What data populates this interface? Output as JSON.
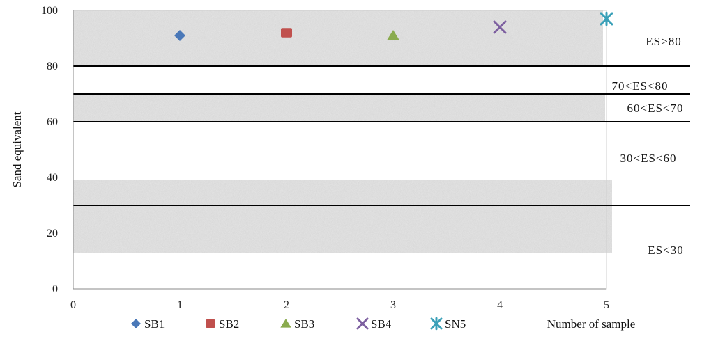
{
  "chart_data": {
    "type": "scatter",
    "title": "",
    "xlabel": "Number of sample",
    "ylabel": "Sand equivalent",
    "xlim": [
      0,
      5
    ],
    "ylim": [
      0,
      100
    ],
    "x_ticks": [
      "0",
      "1",
      "2",
      "3",
      "4",
      "5"
    ],
    "y_ticks": [
      "0",
      "20",
      "40",
      "60",
      "80",
      "100"
    ],
    "series": [
      {
        "name": "SB1",
        "marker": "diamond",
        "color": "#4a78b8",
        "x": [
          1
        ],
        "y": [
          91
        ]
      },
      {
        "name": "SB2",
        "marker": "square",
        "color": "#c0504d",
        "x": [
          2
        ],
        "y": [
          92
        ]
      },
      {
        "name": "SB3",
        "marker": "triangle",
        "color": "#8aab4e",
        "x": [
          3
        ],
        "y": [
          91
        ]
      },
      {
        "name": "SB4",
        "marker": "x",
        "color": "#7d5fa0",
        "x": [
          4
        ],
        "y": [
          94
        ]
      },
      {
        "name": "SN5",
        "marker": "star",
        "color": "#3aa0b8",
        "x": [
          5
        ],
        "y": [
          97
        ]
      }
    ],
    "thresholds": [
      80,
      70,
      60,
      30
    ],
    "zones": [
      {
        "label": "ES>80",
        "y": 89
      },
      {
        "label": "70<ES<80",
        "y": 73
      },
      {
        "label": "60<ES<70",
        "y": 65
      },
      {
        "label": "30<ES<60",
        "y": 47
      },
      {
        "label": "ES<30",
        "y": 14
      }
    ],
    "shaded_bands": [
      [
        80,
        100
      ],
      [
        60,
        70
      ],
      [
        13,
        39
      ]
    ],
    "legend_position": "bottom-left",
    "grid": false
  }
}
